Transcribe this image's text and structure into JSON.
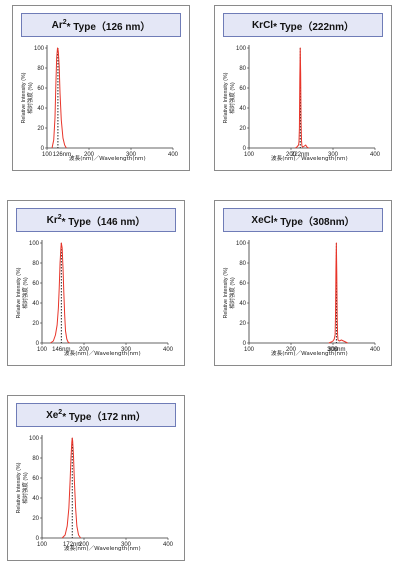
{
  "theme": {
    "line_color": "#e8352a",
    "axis_color": "#333333",
    "title_bg": "#e4e7f6",
    "title_border": "#6f7cb7"
  },
  "ylabel_en": "Relative Intensity (%)",
  "ylabel_jp": "相対強度 (%)",
  "xlabel": "波長(nm)／Wavelength(nm)",
  "chart_data": [
    {
      "type": "line",
      "title_main": "Ar",
      "title_sup": "2",
      "title_rest": "* Type（126 nm）",
      "peak_label": "126nm",
      "peak": 126,
      "xlim": [
        100,
        400
      ],
      "ylim": [
        0,
        100
      ],
      "xticks": [
        200,
        300,
        400
      ],
      "yticks": [
        0,
        20,
        40,
        60,
        80,
        100
      ],
      "x": [
        112,
        116,
        119,
        121,
        123,
        125,
        126,
        127,
        129,
        131,
        134,
        138,
        142,
        146
      ],
      "y": [
        0,
        8,
        30,
        62,
        90,
        100,
        99,
        96,
        82,
        55,
        28,
        10,
        3,
        0
      ]
    },
    {
      "type": "line",
      "title_main": "KrCl",
      "title_sup": "",
      "title_rest": "* Type（222nm）",
      "peak_label": "222nm",
      "peak": 222,
      "xlim": [
        100,
        400
      ],
      "ylim": [
        0,
        100
      ],
      "xticks": [
        200,
        300,
        400
      ],
      "yticks": [
        0,
        20,
        40,
        60,
        80,
        100
      ],
      "x": [
        210,
        214,
        216,
        218,
        219,
        220,
        221,
        222,
        223,
        224,
        225,
        226,
        228,
        232,
        235,
        238,
        242
      ],
      "y": [
        0,
        1,
        2,
        3,
        6,
        20,
        70,
        100,
        75,
        25,
        8,
        2,
        1,
        2,
        3,
        1,
        0
      ]
    },
    {
      "type": "line",
      "title_main": "Kr",
      "title_sup": "2",
      "title_rest": "* Type（146 nm）",
      "peak_label": "146nm",
      "peak": 146,
      "xlim": [
        100,
        400
      ],
      "ylim": [
        0,
        100
      ],
      "xticks": [
        200,
        300,
        400
      ],
      "yticks": [
        0,
        20,
        40,
        60,
        80,
        100
      ],
      "x": [
        120,
        127,
        132,
        136,
        139,
        141,
        143,
        145,
        146,
        148,
        150,
        152,
        154,
        156,
        159,
        162,
        166
      ],
      "y": [
        0,
        2,
        8,
        18,
        35,
        55,
        80,
        95,
        100,
        95,
        75,
        50,
        28,
        12,
        4,
        1,
        0
      ]
    },
    {
      "type": "line",
      "title_main": "XeCl",
      "title_sup": "",
      "title_rest": "* Type（308nm）",
      "peak_label": "308nm",
      "peak": 308,
      "xlim": [
        100,
        400
      ],
      "ylim": [
        0,
        100
      ],
      "xticks": [
        200,
        300,
        400
      ],
      "yticks": [
        0,
        20,
        40,
        60,
        80,
        100
      ],
      "x": [
        290,
        296,
        300,
        303,
        305,
        306,
        307,
        308,
        309,
        310,
        311,
        312,
        315,
        320,
        325,
        330,
        335
      ],
      "y": [
        0,
        1,
        2,
        4,
        8,
        28,
        75,
        100,
        70,
        25,
        8,
        3,
        2,
        3,
        2,
        1,
        0
      ]
    },
    {
      "type": "line",
      "title_main": "Xe",
      "title_sup": "2",
      "title_rest": "* Type（172 nm）",
      "peak_label": "172nm",
      "peak": 172,
      "xlim": [
        100,
        400
      ],
      "ylim": [
        0,
        100
      ],
      "xticks": [
        200,
        300,
        400
      ],
      "yticks": [
        0,
        20,
        40,
        60,
        80,
        100
      ],
      "x": [
        148,
        155,
        160,
        164,
        167,
        169,
        171,
        172,
        173,
        175,
        177,
        180,
        183,
        187,
        192
      ],
      "y": [
        0,
        3,
        12,
        30,
        58,
        80,
        96,
        100,
        97,
        82,
        58,
        30,
        12,
        3,
        0
      ]
    }
  ]
}
